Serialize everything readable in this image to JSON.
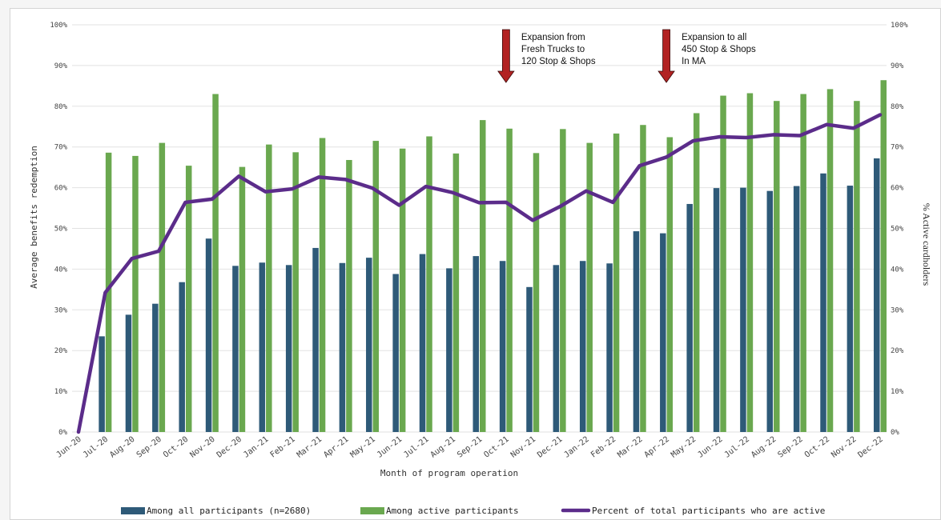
{
  "chart_data": {
    "type": "bar",
    "title": "",
    "xlabel": "Month of program operation",
    "ylabel": "Average benefits redemption",
    "ylabel_right": "% Active cardholders",
    "ylim": [
      0,
      100
    ],
    "yticks": [
      "0%",
      "10%",
      "20%",
      "30%",
      "40%",
      "50%",
      "60%",
      "70%",
      "80%",
      "90%",
      "100%"
    ],
    "grid": true,
    "legend_position": "bottom",
    "categories": [
      "Jun-20",
      "Jul-20",
      "Aug-20",
      "Sep-20",
      "Oct-20",
      "Nov-20",
      "Dec-20",
      "Jan-21",
      "Feb-21",
      "Mar-21",
      "Apr-21",
      "May-21",
      "Jun-21",
      "Jul-21",
      "Aug-21",
      "Sep-21",
      "Oct-21",
      "Nov-21",
      "Dec-21",
      "Jan-22",
      "Feb-22",
      "Mar-22",
      "Apr-22",
      "May-22",
      "Jun-22",
      "Jul-22",
      "Aug-22",
      "Sep-22",
      "Oct-22",
      "Nov-22",
      "Dec-22"
    ],
    "series": [
      {
        "name": "Among all participants (n=2680)",
        "type": "bar",
        "color": "#2e5a78",
        "values": [
          null,
          23.5,
          28.8,
          31.5,
          36.8,
          47.5,
          40.8,
          41.6,
          41.0,
          45.2,
          41.5,
          42.8,
          38.8,
          43.7,
          40.2,
          43.2,
          42.0,
          35.6,
          41.0,
          42.0,
          41.4,
          49.3,
          48.8,
          56.0,
          59.9,
          60.0,
          59.2,
          60.4,
          63.5,
          60.5,
          67.2
        ]
      },
      {
        "name": "Among active participants",
        "type": "bar",
        "color": "#6aa84f",
        "values": [
          null,
          68.6,
          67.8,
          71.0,
          65.4,
          83.0,
          65.1,
          70.6,
          68.7,
          72.2,
          66.8,
          71.5,
          69.6,
          72.6,
          68.4,
          76.6,
          74.5,
          68.5,
          74.4,
          71.0,
          73.3,
          75.4,
          72.4,
          78.3,
          82.6,
          83.2,
          81.3,
          83.0,
          84.2,
          81.3,
          86.4
        ]
      },
      {
        "name": "Percent of total participants who are active",
        "type": "line",
        "color": "#5b2c8a",
        "values": [
          0,
          34.2,
          42.6,
          44.4,
          56.4,
          57.2,
          62.8,
          59.0,
          59.7,
          62.6,
          62.0,
          59.9,
          55.7,
          60.3,
          58.8,
          56.3,
          56.4,
          52.0,
          55.3,
          59.2,
          56.4,
          65.4,
          67.5,
          71.5,
          72.5,
          72.3,
          73.0,
          72.8,
          75.5,
          74.6,
          77.9
        ]
      }
    ],
    "annotations": [
      {
        "lines": [
          "Expansion from",
          "Fresh Trucks to",
          "120 Stop & Shops"
        ],
        "category": "Oct-21",
        "arrow_color": "#b22222"
      },
      {
        "lines": [
          "Expansion to all",
          "450 Stop & Shops",
          "In MA"
        ],
        "category": "Apr-22",
        "arrow_color": "#b22222"
      }
    ]
  }
}
